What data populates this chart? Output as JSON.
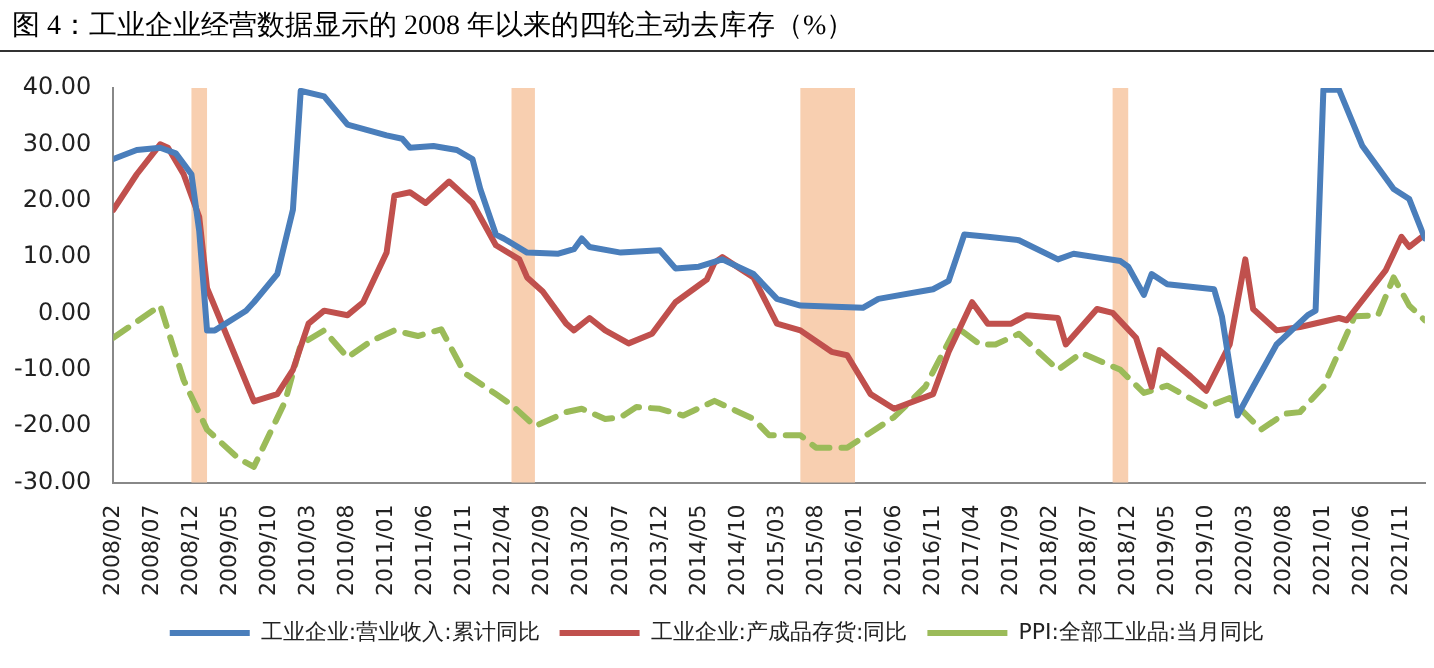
{
  "chart_data": {
    "type": "line",
    "title": "图 4：工业企业经营数据显示的 2008 年以来的四轮主动去库存（%）",
    "xlim": [
      "2008-02",
      "2022-02"
    ],
    "xticks": [
      {
        "value": "2008-02",
        "label": "2008/02"
      },
      {
        "value": "2008-07",
        "label": "2008/07"
      },
      {
        "value": "2008-12",
        "label": "2008/12"
      },
      {
        "value": "2009-05",
        "label": "2009/05"
      },
      {
        "value": "2009-10",
        "label": "2009/10"
      },
      {
        "value": "2010-03",
        "label": "2010/03"
      },
      {
        "value": "2010-08",
        "label": "2010/08"
      },
      {
        "value": "2011-01",
        "label": "2011/01"
      },
      {
        "value": "2011-06",
        "label": "2011/06"
      },
      {
        "value": "2011-11",
        "label": "2011/11"
      },
      {
        "value": "2012-04",
        "label": "2012/04"
      },
      {
        "value": "2012-09",
        "label": "2012/09"
      },
      {
        "value": "2013-02",
        "label": "2013/02"
      },
      {
        "value": "2013-07",
        "label": "2013/07"
      },
      {
        "value": "2013-12",
        "label": "2013/12"
      },
      {
        "value": "2014-05",
        "label": "2014/05"
      },
      {
        "value": "2014-10",
        "label": "2014/10"
      },
      {
        "value": "2015-03",
        "label": "2015/03"
      },
      {
        "value": "2015-08",
        "label": "2015/08"
      },
      {
        "value": "2016-01",
        "label": "2016/01"
      },
      {
        "value": "2016-06",
        "label": "2016/06"
      },
      {
        "value": "2016-11",
        "label": "2016/11"
      },
      {
        "value": "2017-04",
        "label": "2017/04"
      },
      {
        "value": "2017-09",
        "label": "2017/09"
      },
      {
        "value": "2018-02",
        "label": "2018/02"
      },
      {
        "value": "2018-07",
        "label": "2018/07"
      },
      {
        "value": "2018-12",
        "label": "2018/12"
      },
      {
        "value": "2019-05",
        "label": "2019/05"
      },
      {
        "value": "2019-10",
        "label": "2019/10"
      },
      {
        "value": "2020-03",
        "label": "2020/03"
      },
      {
        "value": "2020-08",
        "label": "2020/08"
      },
      {
        "value": "2021-01",
        "label": "2021/01"
      },
      {
        "value": "2021-06",
        "label": "2021/06"
      },
      {
        "value": "2021-11",
        "label": "2021/11"
      }
    ],
    "ylim": [
      -30,
      40
    ],
    "yticks": [
      {
        "value": -30,
        "label": "-30.00"
      },
      {
        "value": -20,
        "label": "-20.00"
      },
      {
        "value": -10,
        "label": "-10.00"
      },
      {
        "value": 0,
        "label": "0.00"
      },
      {
        "value": 10,
        "label": "10.00"
      },
      {
        "value": 20,
        "label": "20.00"
      },
      {
        "value": 30,
        "label": "30.00"
      },
      {
        "value": 40,
        "label": "40.00"
      }
    ],
    "grid": false,
    "legend": "bottom",
    "marker": "none",
    "bands": [
      {
        "axis": "x",
        "from": "2008-12",
        "to": "2009-02",
        "color": "#f8cfb0"
      },
      {
        "axis": "x",
        "from": "2012-05",
        "to": "2012-08",
        "color": "#f8cfb0"
      },
      {
        "axis": "x",
        "from": "2015-06",
        "to": "2016-01",
        "color": "#f8cfb0"
      },
      {
        "axis": "x",
        "from": "2018-10",
        "to": "2018-12",
        "color": "#f8cfb0"
      }
    ],
    "series": [
      {
        "name": "工业企业:营业收入:累计同比",
        "color": "#4a7ebb",
        "line_style": "solid",
        "x": [
          "2008-02",
          "2008-05",
          "2008-08",
          "2008-10",
          "2008-12",
          "2009-01",
          "2009-02",
          "2009-03",
          "2009-07",
          "2009-08",
          "2009-11",
          "2010-01",
          "2010-02",
          "2010-05",
          "2010-08",
          "2011-01",
          "2011-03",
          "2011-04",
          "2011-07",
          "2011-10",
          "2011-12",
          "2012-01",
          "2012-03",
          "2012-04",
          "2012-07",
          "2012-11",
          "2013-01",
          "2013-02",
          "2013-03",
          "2013-07",
          "2013-12",
          "2014-02",
          "2014-05",
          "2014-08",
          "2014-12",
          "2015-03",
          "2015-06",
          "2016-02",
          "2016-04",
          "2016-11",
          "2017-01",
          "2017-03",
          "2017-06",
          "2017-10",
          "2018-03",
          "2018-05",
          "2018-11",
          "2018-12",
          "2019-02",
          "2019-03",
          "2019-05",
          "2019-11",
          "2019-12",
          "2020-02",
          "2020-04",
          "2020-07",
          "2020-11",
          "2020-12",
          "2021-01",
          "2021-03",
          "2021-06",
          "2021-10",
          "2021-12",
          "2022-02"
        ],
        "values": [
          27.4,
          29,
          29.4,
          28.4,
          24.7,
          14.6,
          -3,
          -3,
          0.5,
          2,
          7,
          18.4,
          39.5,
          38.5,
          33.5,
          31.6,
          31,
          29.4,
          29.7,
          29,
          27.4,
          22.1,
          14,
          13.3,
          10.8,
          10.6,
          11.4,
          13.3,
          11.8,
          10.8,
          11.2,
          8,
          8.3,
          9.6,
          7,
          2.6,
          1.4,
          1,
          2.6,
          4.3,
          5.8,
          14,
          13.6,
          13,
          9.6,
          10.6,
          9.3,
          8.3,
          3.3,
          7,
          5.2,
          4.3,
          -0.5,
          -18.1,
          -13,
          -5.5,
          -0.3,
          0.5,
          39.7,
          39.7,
          29.7,
          22.1,
          20.3,
          13.3
        ]
      },
      {
        "name": "工业企业:产成品存货:同比",
        "color": "#c0504d",
        "line_style": "solid",
        "x": [
          "2008-02",
          "2008-05",
          "2008-08",
          "2008-09",
          "2008-11",
          "2009-01",
          "2009-02",
          "2009-05",
          "2009-08",
          "2009-11",
          "2010-01",
          "2010-03",
          "2010-05",
          "2010-08",
          "2010-10",
          "2011-01",
          "2011-02",
          "2011-04",
          "2011-06",
          "2011-09",
          "2011-12",
          "2012-03",
          "2012-06",
          "2012-07",
          "2012-09",
          "2012-12",
          "2013-01",
          "2013-03",
          "2013-05",
          "2013-08",
          "2013-11",
          "2014-02",
          "2014-05",
          "2014-06",
          "2014-07",
          "2014-08",
          "2014-12",
          "2015-03",
          "2015-06",
          "2015-10",
          "2015-12",
          "2016-03",
          "2016-06",
          "2016-11",
          "2017-01",
          "2017-04",
          "2017-06",
          "2017-09",
          "2017-11",
          "2018-03",
          "2018-04",
          "2018-08",
          "2018-10",
          "2019-01",
          "2019-03",
          "2019-04",
          "2019-08",
          "2019-10",
          "2020-01",
          "2020-03",
          "2020-04",
          "2020-07",
          "2020-10",
          "2021-03",
          "2021-04",
          "2021-09",
          "2021-11",
          "2021-12",
          "2022-02"
        ],
        "values": [
          18.4,
          24.7,
          30,
          29.4,
          24.7,
          17.1,
          4.5,
          -5.5,
          -15.6,
          -14.3,
          -10,
          -1.8,
          0.5,
          -0.3,
          2,
          10.8,
          20.9,
          21.5,
          19.6,
          23.4,
          19.6,
          12.1,
          9.6,
          6.4,
          3.9,
          -1.8,
          -3,
          -0.8,
          -3,
          -5.3,
          -3.6,
          2,
          5,
          6,
          9,
          10,
          6.4,
          -1.8,
          -3,
          -6.8,
          -7.4,
          -14.3,
          -16.9,
          -14.3,
          -6.8,
          2,
          -1.8,
          -1.8,
          -0.3,
          -0.8,
          -5.5,
          0.8,
          0.1,
          -4.3,
          -13,
          -6.5,
          -11.2,
          -13.7,
          -5.5,
          9.6,
          0.8,
          -3,
          -2.4,
          -0.8,
          -1.2,
          7.7,
          13.6,
          11.8,
          14
        ]
      },
      {
        "name": "PPI:全部工业品:当月同比",
        "color": "#9bbb59",
        "line_style": "dashed",
        "x": [
          "2008-02",
          "2008-08",
          "2008-11",
          "2009-02",
          "2009-06",
          "2009-08",
          "2009-12",
          "2010-02",
          "2010-05",
          "2010-08",
          "2010-11",
          "2011-02",
          "2011-05",
          "2011-08",
          "2011-11",
          "2012-03",
          "2012-05",
          "2012-08",
          "2012-12",
          "2013-02",
          "2013-05",
          "2013-07",
          "2013-09",
          "2013-12",
          "2014-03",
          "2014-07",
          "2014-12",
          "2015-02",
          "2015-06",
          "2015-08",
          "2015-12",
          "2016-06",
          "2016-10",
          "2017-02",
          "2017-05",
          "2017-07",
          "2017-10",
          "2018-03",
          "2018-06",
          "2018-11",
          "2019-02",
          "2019-05",
          "2019-10",
          "2020-01",
          "2020-05",
          "2020-08",
          "2020-10",
          "2021-01",
          "2021-05",
          "2021-08",
          "2021-10",
          "2021-12",
          "2022-02"
        ],
        "values": [
          -4.3,
          1.4,
          -11.8,
          -20.6,
          -25.7,
          -27.2,
          -15.6,
          -5.5,
          -3,
          -7.8,
          -4.9,
          -3,
          -4,
          -2.8,
          -10.6,
          -14.3,
          -16.2,
          -20,
          -17.5,
          -16.9,
          -18.7,
          -18.4,
          -16.6,
          -16.9,
          -18.1,
          -15.5,
          -18.7,
          -21.6,
          -21.6,
          -23.8,
          -23.8,
          -18.4,
          -13,
          -2.4,
          -5.5,
          -5.5,
          -3.6,
          -10,
          -7,
          -10,
          -14.1,
          -12.8,
          -16.6,
          -15,
          -20.6,
          -17.8,
          -17.5,
          -13,
          -0.5,
          -0.3,
          6.4,
          1.4,
          -1.2
        ]
      }
    ]
  }
}
